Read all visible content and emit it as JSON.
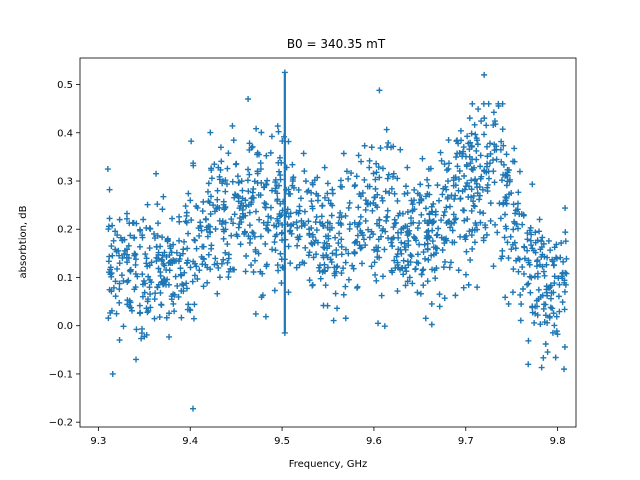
{
  "chart_data": {
    "type": "scatter",
    "title": "B0 = 340.35 mT",
    "xlabel": "Frequency, GHz",
    "ylabel": "absorbtion, dB",
    "xlim": [
      9.28,
      9.82
    ],
    "ylim": [
      -0.21,
      0.555
    ],
    "xticks": [
      9.3,
      9.4,
      9.5,
      9.6,
      9.7,
      9.8
    ],
    "yticks": [
      -0.2,
      -0.1,
      0.0,
      0.1,
      0.2,
      0.3,
      0.4,
      0.5
    ],
    "grid": false,
    "marker": "plus",
    "color": "#1f77b4",
    "vertical_line": {
      "x": 9.503,
      "y_range": [
        -0.015,
        0.525
      ]
    },
    "scatter_x_range": [
      9.31,
      9.81
    ],
    "annotated_points": [
      {
        "x": 9.403,
        "y": -0.172
      },
      {
        "x": 9.72,
        "y": 0.52
      },
      {
        "x": 9.606,
        "y": 0.488
      },
      {
        "x": 9.463,
        "y": 0.47
      },
      {
        "x": 9.341,
        "y": -0.07
      },
      {
        "x": 9.807,
        "y": -0.09
      },
      {
        "x": 9.768,
        "y": -0.08
      }
    ],
    "trend": {
      "x": [
        9.31,
        9.33,
        9.35,
        9.37,
        9.39,
        9.41,
        9.43,
        9.45,
        9.47,
        9.49,
        9.51,
        9.53,
        9.55,
        9.57,
        9.59,
        9.61,
        9.63,
        9.65,
        9.67,
        9.69,
        9.71,
        9.73,
        9.75,
        9.77,
        9.79,
        9.81
      ],
      "y": [
        0.14,
        0.12,
        0.1,
        0.11,
        0.12,
        0.18,
        0.21,
        0.23,
        0.23,
        0.22,
        0.21,
        0.2,
        0.17,
        0.19,
        0.23,
        0.22,
        0.2,
        0.19,
        0.2,
        0.25,
        0.3,
        0.32,
        0.26,
        0.1,
        0.08,
        0.1
      ]
    },
    "spread": {
      "x": [
        9.31,
        9.33,
        9.35,
        9.37,
        9.39,
        9.41,
        9.43,
        9.45,
        9.47,
        9.49,
        9.51,
        9.53,
        9.55,
        9.57,
        9.59,
        9.61,
        9.63,
        9.65,
        9.67,
        9.69,
        9.71,
        9.73,
        9.75,
        9.77,
        9.79,
        9.81
      ],
      "y": [
        0.08,
        0.08,
        0.08,
        0.08,
        0.08,
        0.09,
        0.09,
        0.1,
        0.1,
        0.1,
        0.09,
        0.08,
        0.08,
        0.08,
        0.09,
        0.09,
        0.08,
        0.08,
        0.08,
        0.09,
        0.1,
        0.1,
        0.1,
        0.08,
        0.08,
        0.08
      ]
    },
    "point_count": 1400
  }
}
